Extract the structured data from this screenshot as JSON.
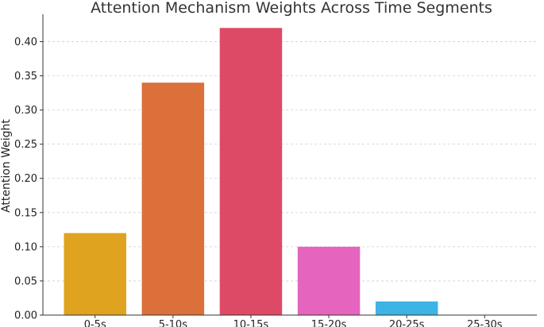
{
  "chart_data": {
    "type": "bar",
    "title": "Attention Mechanism Weights Across Time Segments",
    "xlabel": "",
    "ylabel": "Attention Weight",
    "categories": [
      "0-5s",
      "5-10s",
      "10-15s",
      "15-20s",
      "20-25s",
      "25-30s"
    ],
    "values": [
      0.12,
      0.34,
      0.42,
      0.1,
      0.02,
      0.0
    ],
    "colors": [
      "#E0A320",
      "#DC703A",
      "#DD4A66",
      "#E464BE",
      "#3DB3E6",
      "#6C5FD0"
    ],
    "ylim": [
      0,
      0.44
    ],
    "yticks": [
      0.0,
      0.05,
      0.1,
      0.15,
      0.2,
      0.25,
      0.3,
      0.35,
      0.4
    ],
    "ytick_labels": [
      "0.00",
      "0.05",
      "0.10",
      "0.15",
      "0.20",
      "0.25",
      "0.30",
      "0.35",
      "0.40"
    ],
    "grid": "y-dashed",
    "legend": "none"
  }
}
